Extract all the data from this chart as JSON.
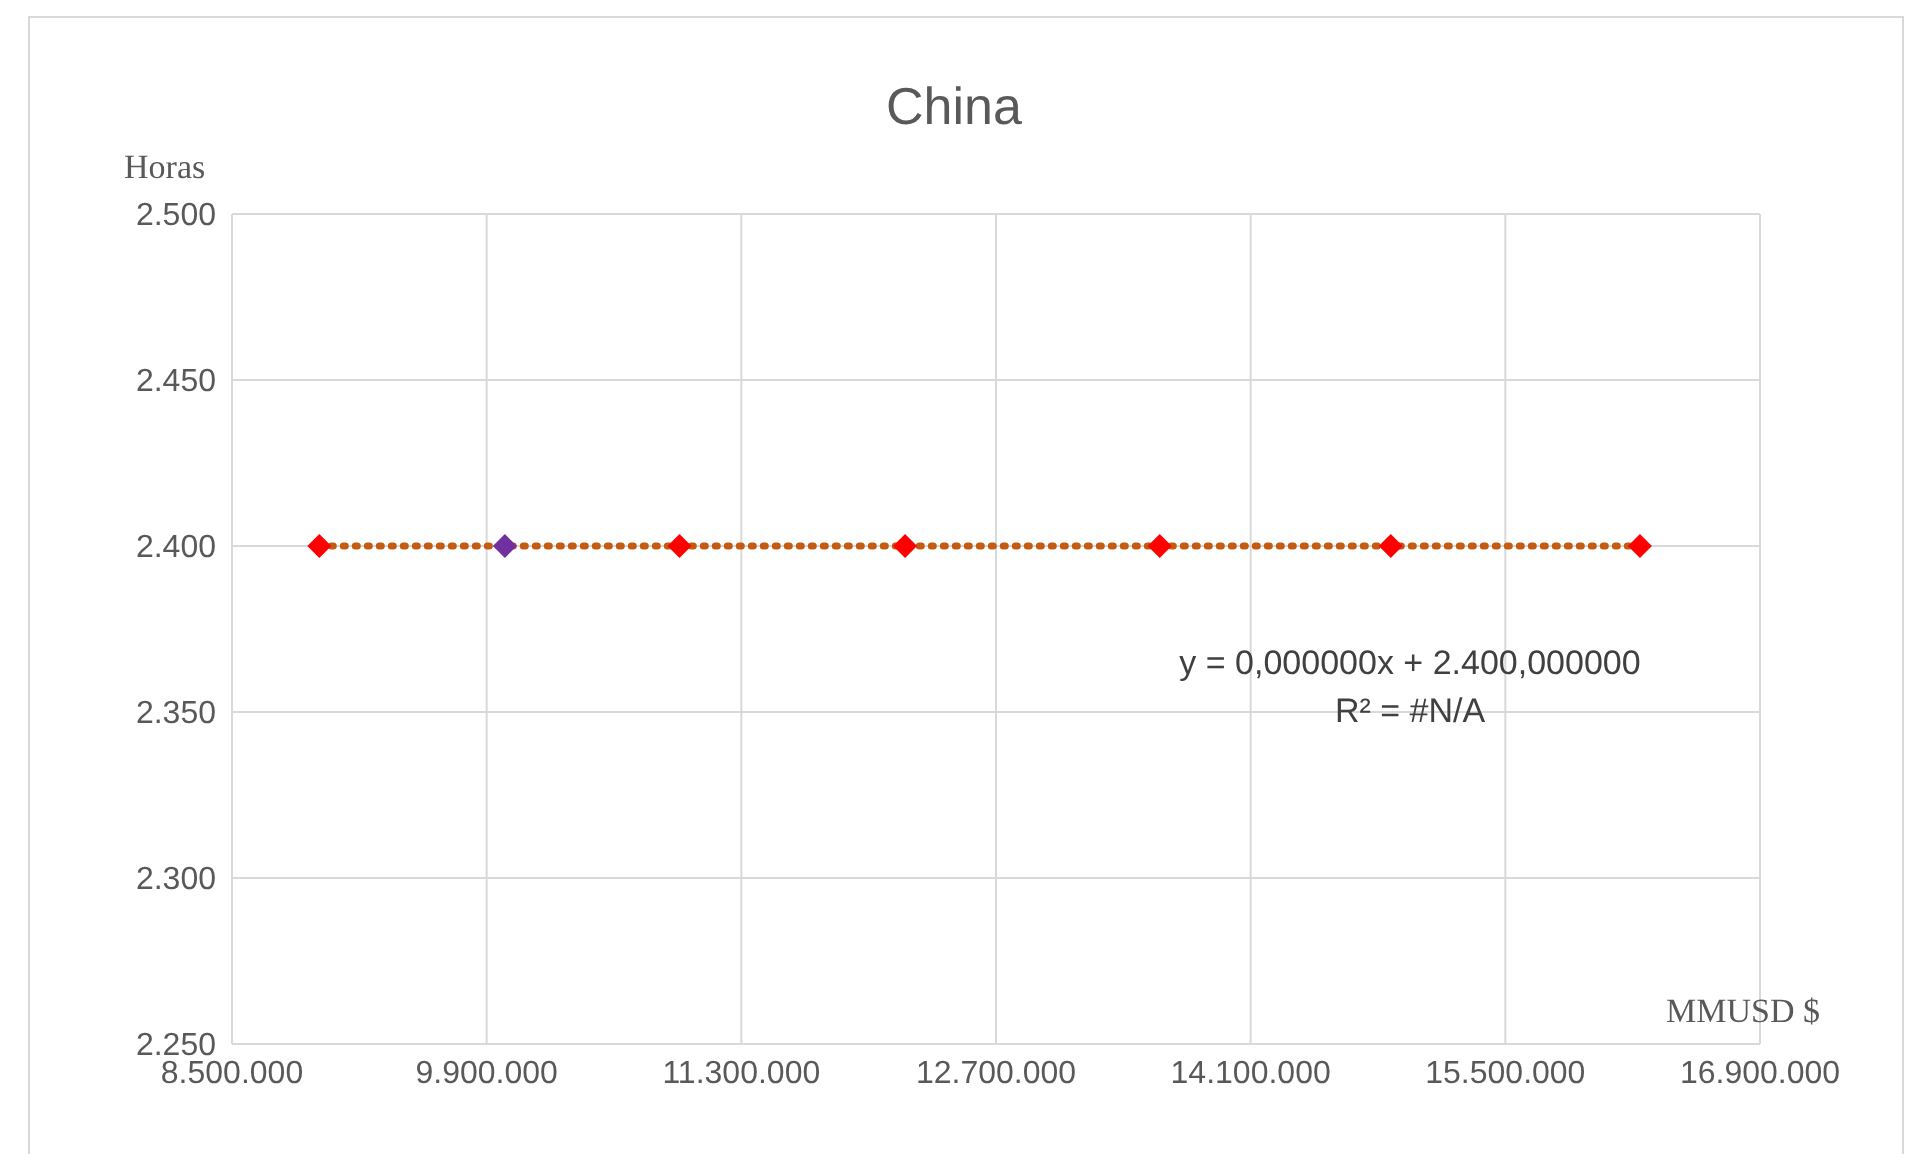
{
  "chart_data": {
    "type": "scatter",
    "title": "China",
    "xlabel": "MMUSD $",
    "ylabel": "Horas",
    "series": [
      {
        "x": [
          8980000,
          10000000,
          10960000,
          12200000,
          13600000,
          14870000,
          16240000
        ],
        "values": [
          2400,
          2400,
          2400,
          2400,
          2400,
          2400,
          2400
        ],
        "colors": [
          "#ff0000",
          "#7030a0",
          "#ff0000",
          "#ff0000",
          "#ff0000",
          "#ff0000",
          "#ff0000"
        ],
        "marker": "diamond"
      },
      {
        "type": "line",
        "x": [
          8980000,
          16240000
        ],
        "values": [
          2400,
          2400
        ],
        "color": "#c55a11",
        "line_style": "dotted",
        "marker": "none"
      }
    ],
    "xlim": [
      8500000,
      16900000
    ],
    "xticks": [
      {
        "value": 8500000,
        "label": "8.500.000"
      },
      {
        "value": 9900000,
        "label": "9.900.000"
      },
      {
        "value": 11300000,
        "label": "11.300.000"
      },
      {
        "value": 12700000,
        "label": "12.700.000"
      },
      {
        "value": 14100000,
        "label": "14.100.000"
      },
      {
        "value": 15500000,
        "label": "15.500.000"
      },
      {
        "value": 16900000,
        "label": "16.900.000"
      }
    ],
    "ylim": [
      2250,
      2500
    ],
    "yticks": [
      {
        "value": 2250,
        "label": "2.250"
      },
      {
        "value": 2300,
        "label": "2.300"
      },
      {
        "value": 2350,
        "label": "2.350"
      },
      {
        "value": 2400,
        "label": "2.400"
      },
      {
        "value": 2450,
        "label": "2.450"
      },
      {
        "value": 2500,
        "label": "2.500"
      }
    ],
    "annotations": [
      "y = 0,000000x + 2.400,000000",
      "R² = #N/A"
    ],
    "grid": true,
    "legend": false
  }
}
